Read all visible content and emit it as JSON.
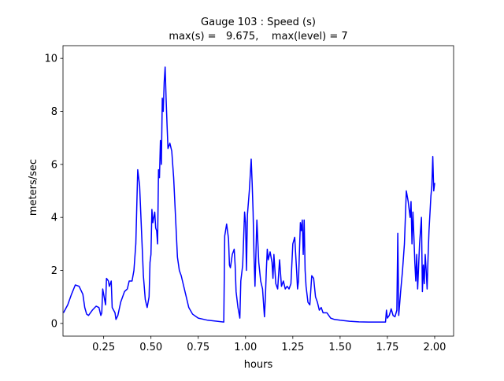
{
  "chart_data": {
    "type": "line",
    "title": "Gauge 103 : Speed (s)",
    "subtitle": "max(s) =   9.675,    max(level) = 7",
    "x_label": "hours",
    "y_label": "meters/sec",
    "xlim": [
      0.035,
      2.1
    ],
    "ylim": [
      -0.48,
      10.48
    ],
    "xticks": [
      0.25,
      {
        "value": 0.5,
        "label": "0.50"
      },
      0.75,
      {
        "value": 1.0,
        "label": "1.00"
      },
      1.25,
      {
        "value": 1.5,
        "label": "1.50"
      },
      1.75,
      {
        "value": 2.0,
        "label": "2.00"
      }
    ],
    "yticks": [
      0,
      2,
      4,
      6,
      8,
      10
    ],
    "grid": false,
    "x": [
      0.0375,
      0.06,
      0.08,
      0.1,
      0.12,
      0.14,
      0.15,
      0.16,
      0.17,
      0.19,
      0.21,
      0.225,
      0.235,
      0.24,
      0.245,
      0.255,
      0.26,
      0.265,
      0.275,
      0.28,
      0.29,
      0.295,
      0.31,
      0.315,
      0.325,
      0.34,
      0.36,
      0.375,
      0.385,
      0.4,
      0.41,
      0.42,
      0.43,
      0.44,
      0.45,
      0.46,
      0.47,
      0.48,
      0.49,
      0.495,
      0.5,
      0.505,
      0.51,
      0.52,
      0.525,
      0.53,
      0.535,
      0.54,
      0.545,
      0.55,
      0.555,
      0.56,
      0.565,
      0.57,
      0.575,
      0.58,
      0.585,
      0.59,
      0.6,
      0.61,
      0.62,
      0.63,
      0.64,
      0.65,
      0.66,
      0.68,
      0.7,
      0.72,
      0.75,
      0.8,
      0.85,
      0.885,
      0.89,
      0.9,
      0.91,
      0.915,
      0.92,
      0.93,
      0.94,
      0.945,
      0.95,
      0.96,
      0.97,
      0.975,
      0.985,
      0.995,
      1.0,
      1.005,
      1.01,
      1.02,
      1.03,
      1.035,
      1.04,
      1.045,
      1.05,
      1.06,
      1.07,
      1.08,
      1.09,
      1.1,
      1.105,
      1.11,
      1.115,
      1.12,
      1.13,
      1.14,
      1.145,
      1.15,
      1.16,
      1.17,
      1.18,
      1.19,
      1.2,
      1.21,
      1.22,
      1.23,
      1.24,
      1.25,
      1.26,
      1.27,
      1.275,
      1.28,
      1.29,
      1.295,
      1.3,
      1.305,
      1.31,
      1.315,
      1.32,
      1.33,
      1.34,
      1.35,
      1.36,
      1.37,
      1.38,
      1.39,
      1.4,
      1.41,
      1.43,
      1.45,
      1.47,
      1.5,
      1.55,
      1.6,
      1.65,
      1.7,
      1.74,
      1.745,
      1.75,
      1.76,
      1.77,
      1.78,
      1.79,
      1.8,
      1.805,
      1.81,
      1.82,
      1.83,
      1.84,
      1.85,
      1.86,
      1.87,
      1.875,
      1.88,
      1.885,
      1.89,
      1.895,
      1.9,
      1.905,
      1.91,
      1.92,
      1.93,
      1.935,
      1.94,
      1.945,
      1.95,
      1.955,
      1.96,
      1.965,
      1.97,
      1.98,
      1.985,
      1.99,
      1.995,
      2.0
    ],
    "series": [
      {
        "name": "s",
        "color": "#0000ff",
        "values": [
          0.4,
          0.7,
          1.1,
          1.45,
          1.4,
          1.1,
          0.6,
          0.35,
          0.3,
          0.5,
          0.65,
          0.6,
          0.3,
          0.4,
          1.3,
          0.9,
          0.7,
          1.7,
          1.6,
          1.4,
          1.6,
          0.6,
          0.4,
          0.15,
          0.3,
          0.8,
          1.2,
          1.3,
          1.6,
          1.6,
          2.0,
          3.0,
          5.8,
          5.2,
          3.5,
          1.8,
          0.9,
          0.6,
          1.0,
          2.3,
          2.6,
          4.3,
          3.8,
          4.2,
          3.6,
          3.5,
          3.0,
          5.8,
          5.5,
          6.9,
          6.0,
          8.5,
          8.0,
          9.1,
          9.675,
          8.5,
          7.5,
          6.6,
          6.8,
          6.5,
          5.5,
          4.0,
          2.5,
          2.0,
          1.8,
          1.2,
          0.6,
          0.35,
          0.2,
          0.12,
          0.08,
          0.05,
          3.3,
          3.75,
          3.2,
          2.2,
          2.1,
          2.6,
          2.8,
          2.2,
          1.2,
          0.6,
          0.2,
          1.6,
          2.2,
          4.2,
          3.8,
          2.0,
          4.1,
          5.0,
          6.2,
          5.3,
          4.2,
          2.5,
          1.4,
          3.9,
          2.3,
          1.6,
          1.3,
          0.25,
          1.0,
          2.0,
          2.8,
          2.4,
          2.7,
          2.3,
          1.7,
          2.6,
          1.5,
          1.3,
          2.4,
          1.4,
          1.6,
          1.3,
          1.4,
          1.3,
          1.5,
          3.0,
          3.25,
          2.0,
          1.3,
          1.6,
          3.8,
          3.5,
          3.9,
          2.6,
          3.9,
          2.0,
          1.4,
          0.8,
          0.7,
          1.8,
          1.7,
          1.0,
          0.8,
          0.5,
          0.6,
          0.4,
          0.4,
          0.2,
          0.15,
          0.12,
          0.08,
          0.06,
          0.05,
          0.05,
          0.05,
          0.5,
          0.2,
          0.3,
          0.55,
          0.3,
          0.25,
          0.5,
          3.4,
          0.3,
          1.2,
          2.0,
          3.0,
          5.0,
          4.6,
          4.0,
          4.6,
          3.0,
          4.2,
          3.3,
          2.3,
          1.6,
          2.6,
          1.3,
          3.0,
          4.0,
          1.2,
          2.2,
          1.5,
          2.6,
          2.0,
          1.3,
          2.5,
          3.5,
          4.8,
          5.2,
          6.3,
          5.0,
          5.3
        ]
      }
    ]
  }
}
